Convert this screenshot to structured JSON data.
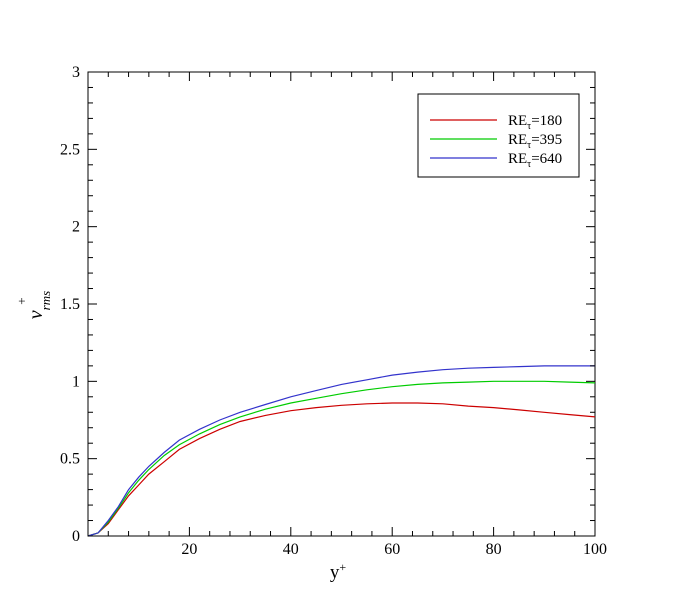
{
  "chart_data": {
    "type": "line",
    "xlabel": {
      "base": "y",
      "sup": "+"
    },
    "ylabel": {
      "base": "v",
      "sub": "rms",
      "sup": "+"
    },
    "xlim": [
      0,
      100
    ],
    "ylim": [
      0,
      3
    ],
    "x_ticks": [
      "20",
      "40",
      "60",
      "80",
      "100"
    ],
    "y_ticks": [
      "0",
      "0.5",
      "1",
      "1.5",
      "2",
      "2.5",
      "3"
    ],
    "grid": false,
    "legend_position": "top-right",
    "series": [
      {
        "name": {
          "base": "RE",
          "sub": "τ",
          "suffix": "=180"
        },
        "color": "#cc0000",
        "points": [
          [
            0,
            0
          ],
          [
            2,
            0.02
          ],
          [
            4,
            0.08
          ],
          [
            6,
            0.17
          ],
          [
            8,
            0.26
          ],
          [
            10,
            0.33
          ],
          [
            12,
            0.4
          ],
          [
            15,
            0.48
          ],
          [
            18,
            0.56
          ],
          [
            22,
            0.63
          ],
          [
            26,
            0.69
          ],
          [
            30,
            0.74
          ],
          [
            35,
            0.78
          ],
          [
            40,
            0.81
          ],
          [
            45,
            0.83
          ],
          [
            50,
            0.845
          ],
          [
            55,
            0.855
          ],
          [
            60,
            0.86
          ],
          [
            65,
            0.86
          ],
          [
            70,
            0.855
          ],
          [
            75,
            0.84
          ],
          [
            80,
            0.83
          ],
          [
            85,
            0.815
          ],
          [
            90,
            0.8
          ],
          [
            95,
            0.785
          ],
          [
            100,
            0.77
          ]
        ]
      },
      {
        "name": {
          "base": "RE",
          "sub": "τ",
          "suffix": "=395"
        },
        "color": "#00cc00",
        "points": [
          [
            0,
            0
          ],
          [
            2,
            0.02
          ],
          [
            4,
            0.09
          ],
          [
            6,
            0.18
          ],
          [
            8,
            0.28
          ],
          [
            10,
            0.36
          ],
          [
            12,
            0.43
          ],
          [
            15,
            0.52
          ],
          [
            18,
            0.59
          ],
          [
            22,
            0.66
          ],
          [
            26,
            0.72
          ],
          [
            30,
            0.77
          ],
          [
            35,
            0.82
          ],
          [
            40,
            0.86
          ],
          [
            45,
            0.89
          ],
          [
            50,
            0.92
          ],
          [
            55,
            0.945
          ],
          [
            60,
            0.965
          ],
          [
            65,
            0.98
          ],
          [
            70,
            0.99
          ],
          [
            75,
            0.995
          ],
          [
            80,
            1.0
          ],
          [
            85,
            1.0
          ],
          [
            90,
            1.0
          ],
          [
            95,
            0.995
          ],
          [
            100,
            0.99
          ]
        ]
      },
      {
        "name": {
          "base": "RE",
          "sub": "τ",
          "suffix": "=640"
        },
        "color": "#3333cc",
        "points": [
          [
            0,
            0
          ],
          [
            2,
            0.02
          ],
          [
            4,
            0.1
          ],
          [
            6,
            0.19
          ],
          [
            8,
            0.3
          ],
          [
            10,
            0.38
          ],
          [
            12,
            0.45
          ],
          [
            15,
            0.54
          ],
          [
            18,
            0.62
          ],
          [
            22,
            0.69
          ],
          [
            26,
            0.75
          ],
          [
            30,
            0.8
          ],
          [
            35,
            0.85
          ],
          [
            40,
            0.9
          ],
          [
            45,
            0.94
          ],
          [
            50,
            0.98
          ],
          [
            55,
            1.01
          ],
          [
            60,
            1.04
          ],
          [
            65,
            1.06
          ],
          [
            70,
            1.075
          ],
          [
            75,
            1.085
          ],
          [
            80,
            1.09
          ],
          [
            85,
            1.095
          ],
          [
            90,
            1.1
          ],
          [
            95,
            1.1
          ],
          [
            100,
            1.1
          ]
        ]
      }
    ]
  }
}
